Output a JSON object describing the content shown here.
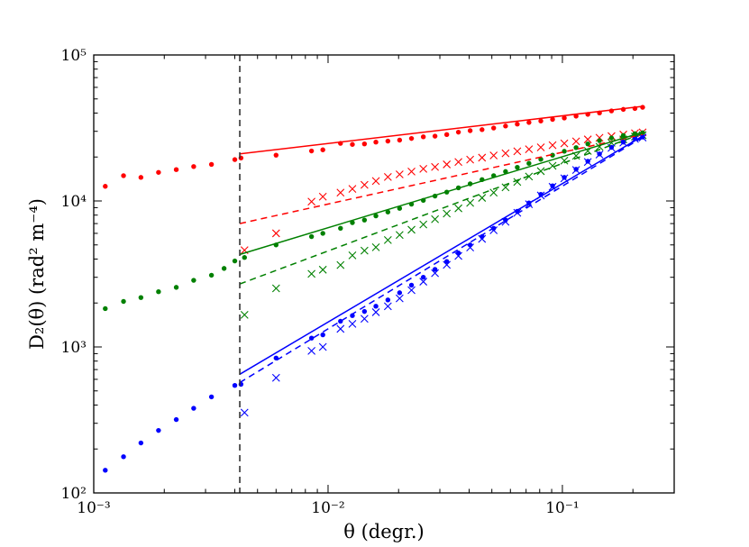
{
  "chart_data": {
    "type": "scatter",
    "xlabel": "θ (degr.)",
    "ylabel": "D₂(θ) (rad² m⁻⁴)",
    "xscale": "log",
    "yscale": "log",
    "xlim": [
      0.001,
      0.3
    ],
    "ylim": [
      100,
      100000
    ],
    "grid": false,
    "legend": "none",
    "x_ticks": [
      {
        "value": 0.001,
        "label": "10⁻³"
      },
      {
        "value": 0.01,
        "label": "10⁻²"
      },
      {
        "value": 0.1,
        "label": "10⁻¹"
      }
    ],
    "y_ticks": [
      {
        "value": 100,
        "label": "10²"
      },
      {
        "value": 1000,
        "label": "10³"
      },
      {
        "value": 10000,
        "label": "10⁴"
      },
      {
        "value": 100000,
        "label": "10⁵"
      }
    ],
    "vertical_line": {
      "x": 0.0042,
      "style": "dashed",
      "color": "#333333"
    },
    "series": [
      {
        "color": "#ff0000",
        "marker": "dot",
        "points": [
          [
            0.00112,
            12600
          ],
          [
            0.00134,
            14900
          ],
          [
            0.00159,
            14500
          ],
          [
            0.00189,
            15700
          ],
          [
            0.00225,
            16400
          ],
          [
            0.00267,
            17200
          ],
          [
            0.00318,
            17800
          ],
          [
            0.004,
            19200
          ],
          [
            0.00425,
            19700
          ],
          [
            0.006,
            20600
          ],
          [
            0.0085,
            22000
          ],
          [
            0.0095,
            22400
          ],
          [
            0.0113,
            24800
          ],
          [
            0.0127,
            24400
          ],
          [
            0.0143,
            24600
          ],
          [
            0.016,
            25300
          ],
          [
            0.018,
            25700
          ],
          [
            0.0202,
            26100
          ],
          [
            0.0227,
            26800
          ],
          [
            0.0255,
            27500
          ],
          [
            0.0286,
            27800
          ],
          [
            0.0321,
            28500
          ],
          [
            0.036,
            29600
          ],
          [
            0.0404,
            30300
          ],
          [
            0.0454,
            30800
          ],
          [
            0.0509,
            31600
          ],
          [
            0.0572,
            32600
          ],
          [
            0.0642,
            33600
          ],
          [
            0.072,
            34500
          ],
          [
            0.0809,
            35300
          ],
          [
            0.0908,
            36200
          ],
          [
            0.1019,
            37000
          ],
          [
            0.1144,
            38100
          ],
          [
            0.1284,
            39200
          ],
          [
            0.144,
            40100
          ],
          [
            0.162,
            41400
          ],
          [
            0.182,
            42400
          ],
          [
            0.204,
            43000
          ],
          [
            0.22,
            43800
          ]
        ]
      },
      {
        "color": "#ff0000",
        "marker": "x",
        "points": [
          [
            0.0044,
            4600
          ],
          [
            0.006,
            6000
          ],
          [
            0.0085,
            9900
          ],
          [
            0.0095,
            10700
          ],
          [
            0.0113,
            11400
          ],
          [
            0.0127,
            12100
          ],
          [
            0.0143,
            12900
          ],
          [
            0.016,
            13700
          ],
          [
            0.018,
            14600
          ],
          [
            0.0202,
            15200
          ],
          [
            0.0227,
            15900
          ],
          [
            0.0255,
            16600
          ],
          [
            0.0286,
            17100
          ],
          [
            0.0321,
            17800
          ],
          [
            0.036,
            18500
          ],
          [
            0.0404,
            19200
          ],
          [
            0.0454,
            19800
          ],
          [
            0.0509,
            20500
          ],
          [
            0.0572,
            21200
          ],
          [
            0.0642,
            21900
          ],
          [
            0.072,
            22600
          ],
          [
            0.0809,
            23300
          ],
          [
            0.0908,
            24100
          ],
          [
            0.1019,
            24800
          ],
          [
            0.1144,
            25600
          ],
          [
            0.1284,
            26400
          ],
          [
            0.144,
            27100
          ],
          [
            0.162,
            27800
          ],
          [
            0.182,
            28500
          ],
          [
            0.204,
            29100
          ],
          [
            0.22,
            29500
          ]
        ]
      },
      {
        "color": "#008000",
        "marker": "dot",
        "points": [
          [
            0.00112,
            1830
          ],
          [
            0.00134,
            2050
          ],
          [
            0.00159,
            2180
          ],
          [
            0.00189,
            2390
          ],
          [
            0.00225,
            2560
          ],
          [
            0.00267,
            2860
          ],
          [
            0.00318,
            3100
          ],
          [
            0.0036,
            3450
          ],
          [
            0.004,
            3880
          ],
          [
            0.0044,
            4100
          ],
          [
            0.006,
            5000
          ],
          [
            0.0085,
            5700
          ],
          [
            0.0095,
            6000
          ],
          [
            0.0113,
            6500
          ],
          [
            0.0127,
            7100
          ],
          [
            0.0143,
            7400
          ],
          [
            0.016,
            7900
          ],
          [
            0.018,
            8400
          ],
          [
            0.0202,
            8900
          ],
          [
            0.0227,
            9500
          ],
          [
            0.0255,
            10100
          ],
          [
            0.0286,
            10800
          ],
          [
            0.0321,
            11500
          ],
          [
            0.036,
            12300
          ],
          [
            0.0404,
            13100
          ],
          [
            0.0454,
            14000
          ],
          [
            0.0509,
            14900
          ],
          [
            0.0572,
            15900
          ],
          [
            0.0642,
            17000
          ],
          [
            0.072,
            18100
          ],
          [
            0.0809,
            19300
          ],
          [
            0.0908,
            20600
          ],
          [
            0.1019,
            21900
          ],
          [
            0.1144,
            23200
          ],
          [
            0.1284,
            24600
          ],
          [
            0.144,
            25900
          ],
          [
            0.162,
            27000
          ],
          [
            0.182,
            28100
          ],
          [
            0.204,
            28900
          ],
          [
            0.22,
            29300
          ]
        ]
      },
      {
        "color": "#008000",
        "marker": "x",
        "points": [
          [
            0.0044,
            1660
          ],
          [
            0.006,
            2520
          ],
          [
            0.0085,
            3170
          ],
          [
            0.0095,
            3380
          ],
          [
            0.0113,
            3640
          ],
          [
            0.0127,
            4240
          ],
          [
            0.0143,
            4570
          ],
          [
            0.016,
            4820
          ],
          [
            0.018,
            5400
          ],
          [
            0.0202,
            5850
          ],
          [
            0.0227,
            6350
          ],
          [
            0.0255,
            6900
          ],
          [
            0.0286,
            7500
          ],
          [
            0.0321,
            8200
          ],
          [
            0.036,
            8900
          ],
          [
            0.0404,
            9700
          ],
          [
            0.0454,
            10500
          ],
          [
            0.0509,
            11400
          ],
          [
            0.0572,
            12400
          ],
          [
            0.0642,
            13500
          ],
          [
            0.072,
            14700
          ],
          [
            0.0809,
            16000
          ],
          [
            0.0908,
            17400
          ],
          [
            0.1019,
            18900
          ],
          [
            0.1144,
            20400
          ],
          [
            0.1284,
            22000
          ],
          [
            0.144,
            23500
          ],
          [
            0.162,
            25000
          ],
          [
            0.182,
            26400
          ],
          [
            0.204,
            27600
          ],
          [
            0.22,
            28200
          ]
        ]
      },
      {
        "color": "#0000ff",
        "marker": "dot",
        "points": [
          [
            0.00112,
            143
          ],
          [
            0.00134,
            177
          ],
          [
            0.00159,
            220
          ],
          [
            0.00189,
            268
          ],
          [
            0.00225,
            318
          ],
          [
            0.00267,
            380
          ],
          [
            0.00318,
            455
          ],
          [
            0.004,
            545
          ],
          [
            0.00425,
            555
          ],
          [
            0.006,
            840
          ],
          [
            0.0085,
            1150
          ],
          [
            0.0095,
            1210
          ],
          [
            0.0113,
            1500
          ],
          [
            0.0127,
            1640
          ],
          [
            0.0143,
            1750
          ],
          [
            0.016,
            1900
          ],
          [
            0.018,
            2100
          ],
          [
            0.0202,
            2350
          ],
          [
            0.0227,
            2650
          ],
          [
            0.0255,
            3000
          ],
          [
            0.0286,
            3400
          ],
          [
            0.0321,
            3850
          ],
          [
            0.036,
            4400
          ],
          [
            0.0404,
            5000
          ],
          [
            0.0454,
            5700
          ],
          [
            0.0509,
            6500
          ],
          [
            0.0572,
            7400
          ],
          [
            0.0642,
            8500
          ],
          [
            0.072,
            9700
          ],
          [
            0.0809,
            11100
          ],
          [
            0.0908,
            12700
          ],
          [
            0.1019,
            14500
          ],
          [
            0.1144,
            16500
          ],
          [
            0.1284,
            18700
          ],
          [
            0.144,
            21000
          ],
          [
            0.162,
            23300
          ],
          [
            0.182,
            25300
          ],
          [
            0.204,
            26800
          ],
          [
            0.22,
            27400
          ]
        ]
      },
      {
        "color": "#0000ff",
        "marker": "x",
        "points": [
          [
            0.0044,
            355
          ],
          [
            0.006,
            615
          ],
          [
            0.0085,
            940
          ],
          [
            0.0095,
            1000
          ],
          [
            0.0113,
            1330
          ],
          [
            0.0127,
            1440
          ],
          [
            0.0143,
            1560
          ],
          [
            0.016,
            1730
          ],
          [
            0.018,
            1900
          ],
          [
            0.0202,
            2150
          ],
          [
            0.0227,
            2450
          ],
          [
            0.0255,
            2800
          ],
          [
            0.0286,
            3200
          ],
          [
            0.0321,
            3650
          ],
          [
            0.036,
            4200
          ],
          [
            0.0404,
            4800
          ],
          [
            0.0454,
            5500
          ],
          [
            0.0509,
            6300
          ],
          [
            0.0572,
            7200
          ],
          [
            0.0642,
            8300
          ],
          [
            0.072,
            9500
          ],
          [
            0.0809,
            10900
          ],
          [
            0.0908,
            12500
          ],
          [
            0.1019,
            14300
          ],
          [
            0.1144,
            16300
          ],
          [
            0.1284,
            18500
          ],
          [
            0.144,
            20800
          ],
          [
            0.162,
            23100
          ],
          [
            0.182,
            25100
          ],
          [
            0.204,
            26600
          ],
          [
            0.22,
            27200
          ]
        ]
      }
    ],
    "fits": [
      {
        "color": "#ff0000",
        "style": "solid",
        "from": [
          0.0042,
          21000
        ],
        "to": [
          0.22,
          44500
        ]
      },
      {
        "color": "#ff0000",
        "style": "dashed",
        "from": [
          0.0042,
          7000
        ],
        "to": [
          0.22,
          28500
        ]
      },
      {
        "color": "#008000",
        "style": "solid",
        "from": [
          0.0042,
          4300
        ],
        "to": [
          0.22,
          29500
        ]
      },
      {
        "color": "#008000",
        "style": "dashed",
        "from": [
          0.0042,
          2700
        ],
        "to": [
          0.22,
          29000
        ]
      },
      {
        "color": "#0000ff",
        "style": "solid",
        "from": [
          0.0042,
          650
        ],
        "to": [
          0.22,
          27800
        ]
      },
      {
        "color": "#0000ff",
        "style": "dashed",
        "from": [
          0.0042,
          570
        ],
        "to": [
          0.22,
          27300
        ]
      }
    ]
  }
}
